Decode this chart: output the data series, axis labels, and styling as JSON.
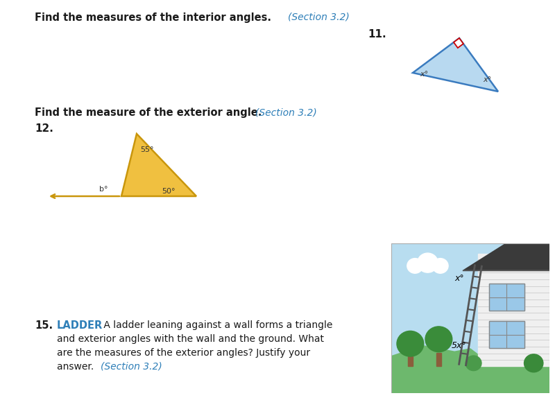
{
  "bg_color": "#ffffff",
  "title1": "Find the measures of the interior angles.",
  "title1_section": "(Section 3.2)",
  "title2": "Find the measure of the exterior angle.",
  "title2_section": "(Section 3.2)",
  "num11": "11.",
  "num12": "12.",
  "num15": "15.",
  "tri11_fill": "#b8d9f0",
  "tri11_edge": "#3a7bbf",
  "tri12_fill": "#f0c040",
  "tri12_edge": "#c9960c",
  "sq_color": "#cc0000",
  "label_color": "#333333",
  "section_color": "#2e7fb8",
  "ladder_keyword_color": "#2e7fb8",
  "text_color": "#1a1a1a"
}
